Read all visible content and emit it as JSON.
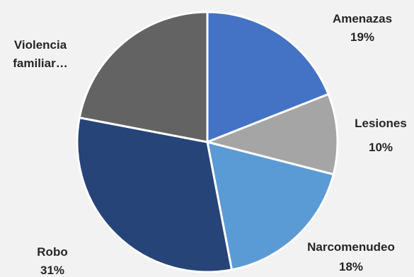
{
  "chart_data": {
    "type": "pie",
    "title": "",
    "slices": [
      {
        "label": "Amenazas",
        "value": 19,
        "value_label": "19%",
        "color": "#4472c4"
      },
      {
        "label": "Lesiones",
        "value": 10,
        "value_label": "10%",
        "color": "#a5a5a5"
      },
      {
        "label": "Narcomenudeo",
        "value": 18,
        "value_label": "18%",
        "color": "#5b9bd5"
      },
      {
        "label": "Robo",
        "value": 31,
        "value_label": "31%",
        "color": "#264478"
      },
      {
        "label": "Violencia familiar…",
        "value": 22,
        "value_label": "",
        "color": "#636363"
      }
    ],
    "slice_border_color": "#ffffff",
    "legend": "none"
  }
}
